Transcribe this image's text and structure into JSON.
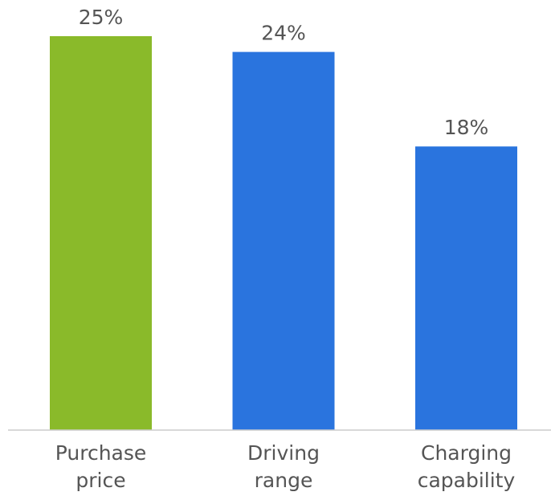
{
  "chart_data": {
    "type": "bar",
    "categories": [
      "Purchase price",
      "Driving range",
      "Charging capability"
    ],
    "values": [
      25,
      24,
      18
    ],
    "value_labels": [
      "25%",
      "24%",
      "18%"
    ],
    "colors": [
      "#8aba2a",
      "#2a74de",
      "#2a74de"
    ],
    "ylim": [
      0,
      25
    ]
  }
}
